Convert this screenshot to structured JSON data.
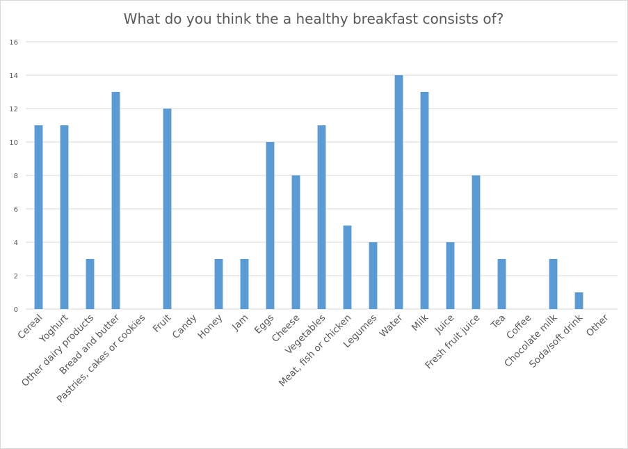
{
  "chart_data": {
    "type": "bar",
    "title": "What do you think the a healthy breakfast consists of?",
    "xlabel": "",
    "ylabel": "",
    "ylim": [
      0,
      16
    ],
    "yticks": [
      0,
      2,
      4,
      6,
      8,
      10,
      12,
      14,
      16
    ],
    "grid": true,
    "legend": "none",
    "bar_color": "#5b9bd5",
    "categories": [
      "Cereal",
      "Yoghurt",
      "Other dairy products",
      "Bread and butter",
      "Pastries, cakes or cookies",
      "Fruit",
      "Candy",
      "Honey",
      "Jam",
      "Eggs",
      "Cheese",
      "Vegetables",
      "Meat, fish or chicken",
      "Legumes",
      "Water",
      "Milk",
      "Juice",
      "Fresh fruit juice",
      "Tea",
      "Coffee",
      "Chocolate milk",
      "Soda/soft drink",
      "Other"
    ],
    "values": [
      11,
      11,
      3,
      13,
      0,
      12,
      0,
      3,
      3,
      10,
      8,
      11,
      5,
      4,
      14,
      13,
      4,
      8,
      3,
      0,
      3,
      1,
      0
    ]
  }
}
